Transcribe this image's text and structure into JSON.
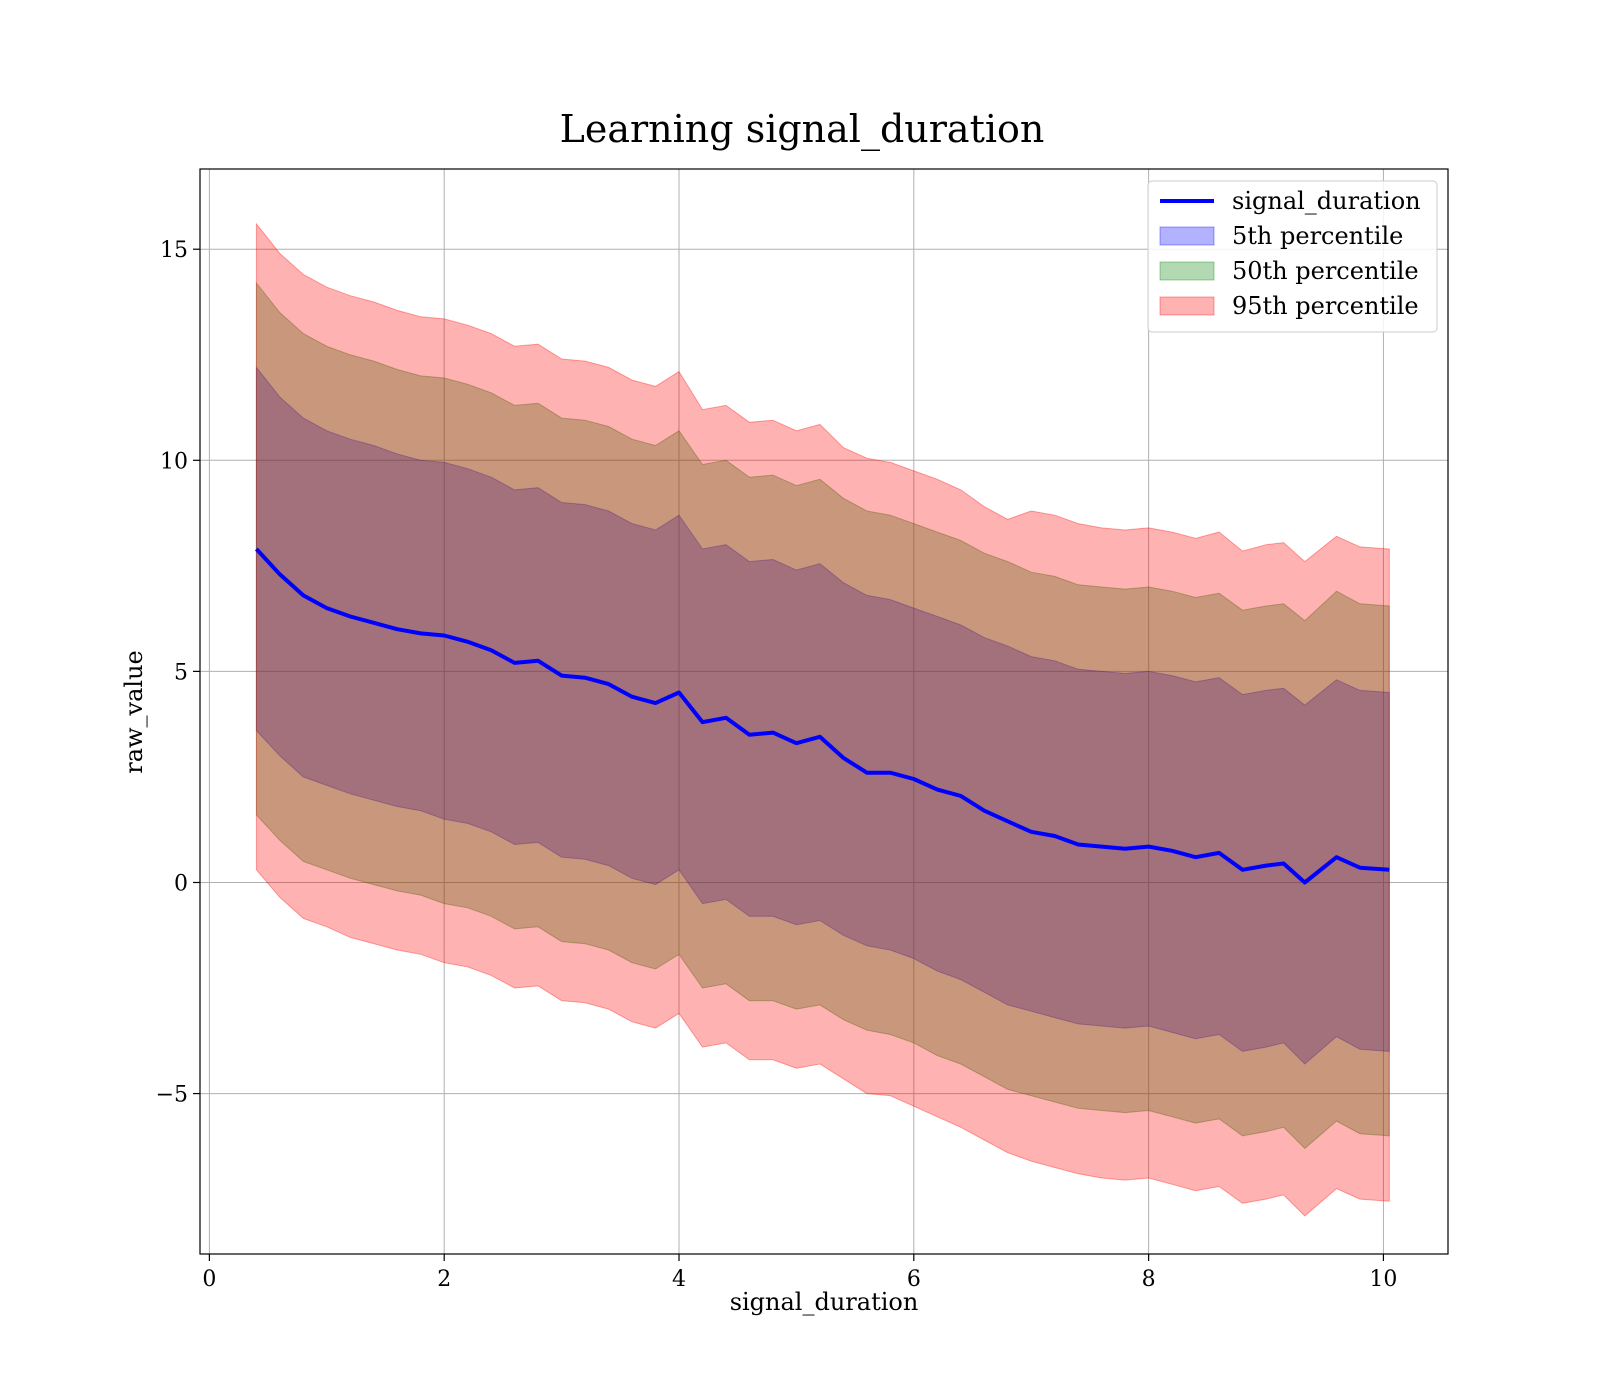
{
  "chart_data": {
    "type": "area",
    "title": "Learning signal_duration",
    "xlabel": "signal_duration",
    "ylabel": "raw_value",
    "xlim": [
      -0.08,
      10.55
    ],
    "ylim": [
      -8.8,
      16.9
    ],
    "xticks": [
      0,
      2,
      4,
      6,
      8,
      10
    ],
    "yticks": [
      -5,
      0,
      5,
      10,
      15
    ],
    "xtick_labels": [
      "0",
      "2",
      "4",
      "6",
      "8",
      "10"
    ],
    "ytick_labels": [
      "−5",
      "0",
      "5",
      "10",
      "15"
    ],
    "grid": true,
    "legend_position": "top-right",
    "x": [
      0.4,
      0.6,
      0.8,
      1.0,
      1.2,
      1.4,
      1.6,
      1.8,
      2.0,
      2.2,
      2.4,
      2.6,
      2.8,
      3.0,
      3.2,
      3.4,
      3.6,
      3.8,
      4.0,
      4.2,
      4.4,
      4.6,
      4.8,
      5.0,
      5.2,
      5.4,
      5.6,
      5.8,
      6.0,
      6.2,
      6.4,
      6.6,
      6.8,
      7.0,
      7.2,
      7.4,
      7.6,
      7.8,
      8.0,
      8.2,
      8.4,
      8.6,
      8.8,
      9.0,
      9.15,
      9.33,
      9.6,
      9.8,
      10.05
    ],
    "series": [
      {
        "name": "signal_duration",
        "kind": "line",
        "color": "#0000ff",
        "values": [
          7.9,
          7.3,
          6.8,
          6.5,
          6.3,
          6.15,
          6.0,
          5.9,
          5.85,
          5.7,
          5.5,
          5.2,
          5.25,
          4.9,
          4.85,
          4.7,
          4.4,
          4.25,
          4.5,
          3.8,
          3.9,
          3.5,
          3.55,
          3.3,
          3.45,
          2.95,
          2.6,
          2.6,
          2.45,
          2.2,
          2.05,
          1.7,
          1.45,
          1.2,
          1.1,
          0.9,
          0.85,
          0.8,
          0.85,
          0.75,
          0.6,
          0.7,
          0.3,
          0.4,
          0.45,
          0.0,
          0.6,
          0.35,
          0.3
        ]
      },
      {
        "name": "5th percentile",
        "kind": "band",
        "color": "#0000ff",
        "alpha": 0.3,
        "upper": [
          12.2,
          11.5,
          11.0,
          10.7,
          10.5,
          10.35,
          10.15,
          10.0,
          9.95,
          9.8,
          9.6,
          9.3,
          9.35,
          9.0,
          8.95,
          8.8,
          8.5,
          8.35,
          8.7,
          7.9,
          8.0,
          7.6,
          7.65,
          7.4,
          7.55,
          7.1,
          6.8,
          6.7,
          6.5,
          6.3,
          6.1,
          5.8,
          5.6,
          5.35,
          5.25,
          5.05,
          5.0,
          4.95,
          5.0,
          4.9,
          4.75,
          4.85,
          4.45,
          4.55,
          4.6,
          4.2,
          4.8,
          4.55,
          4.5
        ],
        "lower": [
          3.6,
          3.0,
          2.5,
          2.3,
          2.1,
          1.95,
          1.8,
          1.7,
          1.5,
          1.4,
          1.2,
          0.9,
          0.95,
          0.6,
          0.55,
          0.4,
          0.1,
          -0.05,
          0.3,
          -0.5,
          -0.4,
          -0.8,
          -0.8,
          -1.0,
          -0.9,
          -1.25,
          -1.5,
          -1.6,
          -1.8,
          -2.1,
          -2.3,
          -2.6,
          -2.9,
          -3.05,
          -3.2,
          -3.35,
          -3.4,
          -3.45,
          -3.4,
          -3.55,
          -3.7,
          -3.6,
          -4.0,
          -3.9,
          -3.8,
          -4.3,
          -3.65,
          -3.95,
          -4.0
        ]
      },
      {
        "name": "50th percentile",
        "kind": "band",
        "color": "#008000",
        "alpha": 0.3,
        "upper": [
          14.2,
          13.5,
          13.0,
          12.7,
          12.5,
          12.35,
          12.15,
          12.0,
          11.95,
          11.8,
          11.6,
          11.3,
          11.35,
          11.0,
          10.95,
          10.8,
          10.5,
          10.35,
          10.7,
          9.9,
          10.0,
          9.6,
          9.65,
          9.4,
          9.55,
          9.1,
          8.8,
          8.7,
          8.5,
          8.3,
          8.1,
          7.8,
          7.6,
          7.35,
          7.25,
          7.05,
          7.0,
          6.95,
          7.0,
          6.9,
          6.75,
          6.85,
          6.45,
          6.55,
          6.6,
          6.2,
          6.9,
          6.6,
          6.55
        ],
        "lower": [
          1.6,
          1.0,
          0.5,
          0.3,
          0.1,
          -0.05,
          -0.2,
          -0.3,
          -0.5,
          -0.6,
          -0.8,
          -1.1,
          -1.05,
          -1.4,
          -1.45,
          -1.6,
          -1.9,
          -2.05,
          -1.7,
          -2.5,
          -2.4,
          -2.8,
          -2.8,
          -3.0,
          -2.9,
          -3.25,
          -3.5,
          -3.6,
          -3.8,
          -4.1,
          -4.3,
          -4.6,
          -4.9,
          -5.05,
          -5.2,
          -5.35,
          -5.4,
          -5.45,
          -5.4,
          -5.55,
          -5.7,
          -5.6,
          -6.0,
          -5.9,
          -5.8,
          -6.3,
          -5.65,
          -5.95,
          -6.0
        ]
      },
      {
        "name": "95th percentile",
        "kind": "band",
        "color": "#ff0000",
        "alpha": 0.3,
        "upper": [
          15.6,
          14.9,
          14.4,
          14.1,
          13.9,
          13.75,
          13.55,
          13.4,
          13.35,
          13.2,
          13.0,
          12.7,
          12.75,
          12.4,
          12.35,
          12.2,
          11.9,
          11.75,
          12.1,
          11.2,
          11.3,
          10.9,
          10.95,
          10.7,
          10.85,
          10.3,
          10.05,
          9.95,
          9.75,
          9.55,
          9.3,
          8.9,
          8.6,
          8.8,
          8.7,
          8.5,
          8.4,
          8.35,
          8.4,
          8.3,
          8.15,
          8.3,
          7.85,
          8.0,
          8.05,
          7.6,
          8.2,
          7.95,
          7.9
        ],
        "lower": [
          0.3,
          -0.35,
          -0.85,
          -1.05,
          -1.3,
          -1.45,
          -1.6,
          -1.7,
          -1.9,
          -2.0,
          -2.2,
          -2.5,
          -2.45,
          -2.8,
          -2.85,
          -3.0,
          -3.3,
          -3.45,
          -3.1,
          -3.9,
          -3.8,
          -4.2,
          -4.2,
          -4.4,
          -4.3,
          -4.65,
          -5.0,
          -5.05,
          -5.3,
          -5.55,
          -5.8,
          -6.1,
          -6.4,
          -6.6,
          -6.75,
          -6.9,
          -7.0,
          -7.05,
          -7.0,
          -7.15,
          -7.3,
          -7.2,
          -7.6,
          -7.5,
          -7.4,
          -7.9,
          -7.25,
          -7.5,
          -7.55
        ]
      }
    ]
  }
}
